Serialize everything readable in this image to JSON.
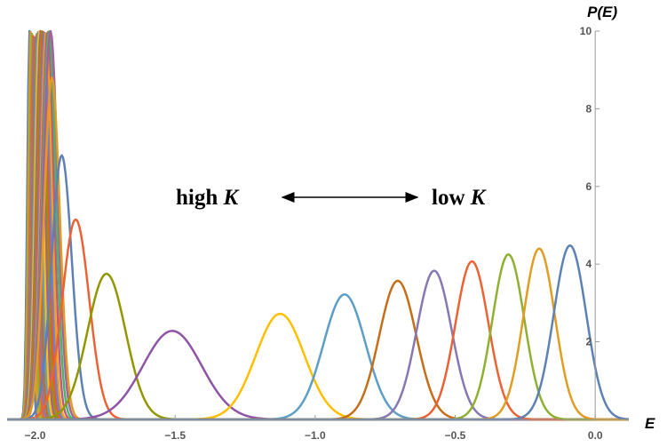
{
  "chart_data": {
    "type": "line",
    "xlabel": "E",
    "ylabel": "P(E)",
    "xlim": [
      -2.1,
      0.12
    ],
    "ylim": [
      0,
      10
    ],
    "x_ticks": [
      -2.0,
      -1.5,
      -1.0,
      -0.5,
      0.0
    ],
    "x_tick_labels": [
      "−2.0",
      "−1.5",
      "−1.0",
      "−0.5",
      "0.0"
    ],
    "y_ticks": [
      2,
      4,
      6,
      8,
      10
    ],
    "y_tick_labels": [
      "2",
      "4",
      "6",
      "8",
      "10"
    ],
    "grid": false,
    "legend": "none",
    "annotations": {
      "left_text": "high ",
      "left_var": "K",
      "right_text": "low ",
      "right_var": "K"
    },
    "series": [
      {
        "mean": -2.02,
        "peak": 10,
        "sd": 0.008,
        "color": "#5E81B5"
      },
      {
        "mean": -2.015,
        "peak": 10,
        "sd": 0.009,
        "color": "#E19C24"
      },
      {
        "mean": -2.01,
        "peak": 10,
        "sd": 0.01,
        "color": "#8FB032"
      },
      {
        "mean": -2.005,
        "peak": 10,
        "sd": 0.011,
        "color": "#EB6235"
      },
      {
        "mean": -2.0,
        "peak": 10,
        "sd": 0.012,
        "color": "#8778B3"
      },
      {
        "mean": -1.995,
        "peak": 10,
        "sd": 0.013,
        "color": "#C56E1A"
      },
      {
        "mean": -1.99,
        "peak": 10,
        "sd": 0.014,
        "color": "#5D9EC7"
      },
      {
        "mean": -1.985,
        "peak": 10,
        "sd": 0.015,
        "color": "#FFBF00"
      },
      {
        "mean": -1.98,
        "peak": 10,
        "sd": 0.016,
        "color": "#A5609D"
      },
      {
        "mean": -1.975,
        "peak": 10,
        "sd": 0.017,
        "color": "#929600"
      },
      {
        "mean": -1.97,
        "peak": 10,
        "sd": 0.018,
        "color": "#E95536"
      },
      {
        "mean": -1.965,
        "peak": 10,
        "sd": 0.019,
        "color": "#6685D9"
      },
      {
        "mean": -1.96,
        "peak": 10,
        "sd": 0.02,
        "color": "#F89F13"
      },
      {
        "mean": -1.955,
        "peak": 10,
        "sd": 0.022,
        "color": "#BC5B80"
      },
      {
        "mean": -1.95,
        "peak": 10,
        "sd": 0.024,
        "color": "#47B66D"
      },
      {
        "mean": -1.945,
        "peak": 10,
        "sd": 0.026,
        "color": "#A5609D"
      },
      {
        "mean": -1.94,
        "peak": 8.8,
        "sd": 0.028,
        "color": "#E19C24"
      },
      {
        "mean": -1.905,
        "peak": 6.8,
        "sd": 0.036,
        "color": "#5E81B5"
      },
      {
        "mean": -1.855,
        "peak": 5.15,
        "sd": 0.048,
        "color": "#EB6235"
      },
      {
        "mean": -1.745,
        "peak": 3.75,
        "sd": 0.068,
        "color": "#929600"
      },
      {
        "mean": -1.51,
        "peak": 2.28,
        "sd": 0.105,
        "color": "#8F53A8"
      },
      {
        "mean": -1.125,
        "peak": 2.72,
        "sd": 0.087,
        "color": "#FFBF00"
      },
      {
        "mean": -0.895,
        "peak": 3.22,
        "sd": 0.075,
        "color": "#5D9EC7"
      },
      {
        "mean": -0.705,
        "peak": 3.57,
        "sd": 0.066,
        "color": "#C56E1A"
      },
      {
        "mean": -0.575,
        "peak": 3.83,
        "sd": 0.062,
        "color": "#8778B3"
      },
      {
        "mean": -0.44,
        "peak": 4.07,
        "sd": 0.059,
        "color": "#EB6235"
      },
      {
        "mean": -0.31,
        "peak": 4.25,
        "sd": 0.057,
        "color": "#8FB032"
      },
      {
        "mean": -0.2,
        "peak": 4.4,
        "sd": 0.056,
        "color": "#E19C24"
      },
      {
        "mean": -0.09,
        "peak": 4.48,
        "sd": 0.058,
        "color": "#5E81B5"
      }
    ]
  }
}
